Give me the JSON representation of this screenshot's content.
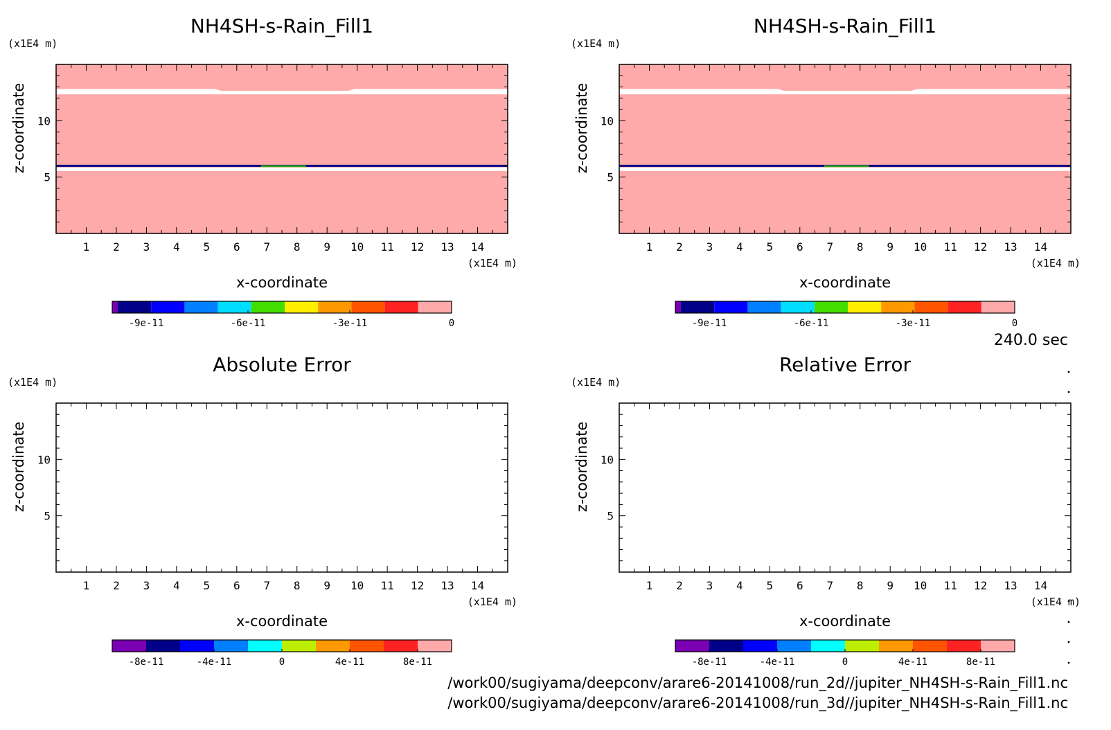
{
  "figure": {
    "time_label": "240.0 sec",
    "paths": [
      "/work00/sugiyama/deepconv/arare6-20141008/run_2d//jupiter_NH4SH-s-Rain_Fill1.nc",
      "/work00/sugiyama/deepconv/arare6-20141008/run_3d//jupiter_NH4SH-s-Rain_Fill1.nc"
    ]
  },
  "chart_data": [
    {
      "type": "heatmap",
      "panel": "top-left",
      "title": "NH4SH-s-Rain_Fill1",
      "xlabel": "x-coordinate",
      "ylabel": "z-coordinate",
      "x_unit": "(x1E4 m)",
      "z_unit": "(x1E4 m)",
      "xlim": [
        0,
        15
      ],
      "ylim": [
        0,
        15
      ],
      "x_ticks": [
        1,
        2,
        3,
        4,
        5,
        6,
        7,
        8,
        9,
        10,
        11,
        12,
        13,
        14
      ],
      "y_ticks": [
        5,
        10
      ],
      "field_value": 0,
      "field_color": "#ffaaaa",
      "features": [
        {
          "name": "upper gap",
          "z": 12.5,
          "color": "#ffffff"
        },
        {
          "name": "lower band",
          "z": 6.0,
          "color": "#000088"
        },
        {
          "name": "lower gap",
          "z": 5.7,
          "color": "#ffffff"
        }
      ],
      "colorbar": {
        "range": [
          -1e-10,
          0
        ],
        "colors": [
          "#7b00b3",
          "#000088",
          "#0000ff",
          "#0080ff",
          "#00ddff",
          "#44dd00",
          "#ffee00",
          "#ff9900",
          "#ff5500",
          "#ff2222",
          "#ffaaaa"
        ],
        "ticks": [
          "-9e-11",
          "-6e-11",
          "-3e-11",
          "0"
        ]
      }
    },
    {
      "type": "heatmap",
      "panel": "top-right",
      "title": "NH4SH-s-Rain_Fill1",
      "xlabel": "x-coordinate",
      "ylabel": "z-coordinate",
      "x_unit": "(x1E4 m)",
      "z_unit": "(x1E4 m)",
      "xlim": [
        0,
        15
      ],
      "ylim": [
        0,
        15
      ],
      "x_ticks": [
        1,
        2,
        3,
        4,
        5,
        6,
        7,
        8,
        9,
        10,
        11,
        12,
        13,
        14
      ],
      "y_ticks": [
        5,
        10
      ],
      "field_value": 0,
      "field_color": "#ffaaaa",
      "features": [
        {
          "name": "upper gap",
          "z": 12.5,
          "color": "#ffffff"
        },
        {
          "name": "lower band",
          "z": 6.0,
          "color": "#000088"
        },
        {
          "name": "lower gap",
          "z": 5.7,
          "color": "#ffffff"
        }
      ],
      "colorbar": {
        "range": [
          -1e-10,
          0
        ],
        "colors": [
          "#7b00b3",
          "#000088",
          "#0000ff",
          "#0080ff",
          "#00ddff",
          "#44dd00",
          "#ffee00",
          "#ff9900",
          "#ff5500",
          "#ff2222",
          "#ffaaaa"
        ],
        "ticks": [
          "-9e-11",
          "-6e-11",
          "-3e-11",
          "0"
        ]
      }
    },
    {
      "type": "heatmap",
      "panel": "bottom-left",
      "title": "Absolute Error",
      "xlabel": "x-coordinate",
      "ylabel": "z-coordinate",
      "x_unit": "(x1E4 m)",
      "z_unit": "(x1E4 m)",
      "xlim": [
        0,
        15
      ],
      "ylim": [
        0,
        15
      ],
      "x_ticks": [
        1,
        2,
        3,
        4,
        5,
        6,
        7,
        8,
        9,
        10,
        11,
        12,
        13,
        14
      ],
      "y_ticks": [
        5,
        10
      ],
      "field_value": null,
      "field_color": "#ffffff",
      "features": [],
      "colorbar": {
        "range": [
          -1e-10,
          1e-10
        ],
        "colors": [
          "#7b00b3",
          "#000088",
          "#0000ff",
          "#0080ff",
          "#00ffff",
          "#bbee00",
          "#ff9900",
          "#ff5500",
          "#ff2222",
          "#ffaaaa"
        ],
        "ticks": [
          "-8e-11",
          "-4e-11",
          "0",
          "4e-11",
          "8e-11"
        ]
      }
    },
    {
      "type": "heatmap",
      "panel": "bottom-right",
      "title": "Relative Error",
      "xlabel": "x-coordinate",
      "ylabel": "z-coordinate",
      "x_unit": "(x1E4 m)",
      "z_unit": "(x1E4 m)",
      "xlim": [
        0,
        15
      ],
      "ylim": [
        0,
        15
      ],
      "x_ticks": [
        1,
        2,
        3,
        4,
        5,
        6,
        7,
        8,
        9,
        10,
        11,
        12,
        13,
        14
      ],
      "y_ticks": [
        5,
        10
      ],
      "field_value": null,
      "field_color": "#ffffff",
      "features": [],
      "colorbar": {
        "range": [
          -1e-10,
          1e-10
        ],
        "colors": [
          "#7b00b3",
          "#000088",
          "#0000ff",
          "#0080ff",
          "#00ffff",
          "#bbee00",
          "#ff9900",
          "#ff5500",
          "#ff2222",
          "#ffaaaa"
        ],
        "ticks": [
          "-8e-11",
          "-4e-11",
          "0",
          "4e-11",
          "8e-11"
        ]
      }
    }
  ]
}
